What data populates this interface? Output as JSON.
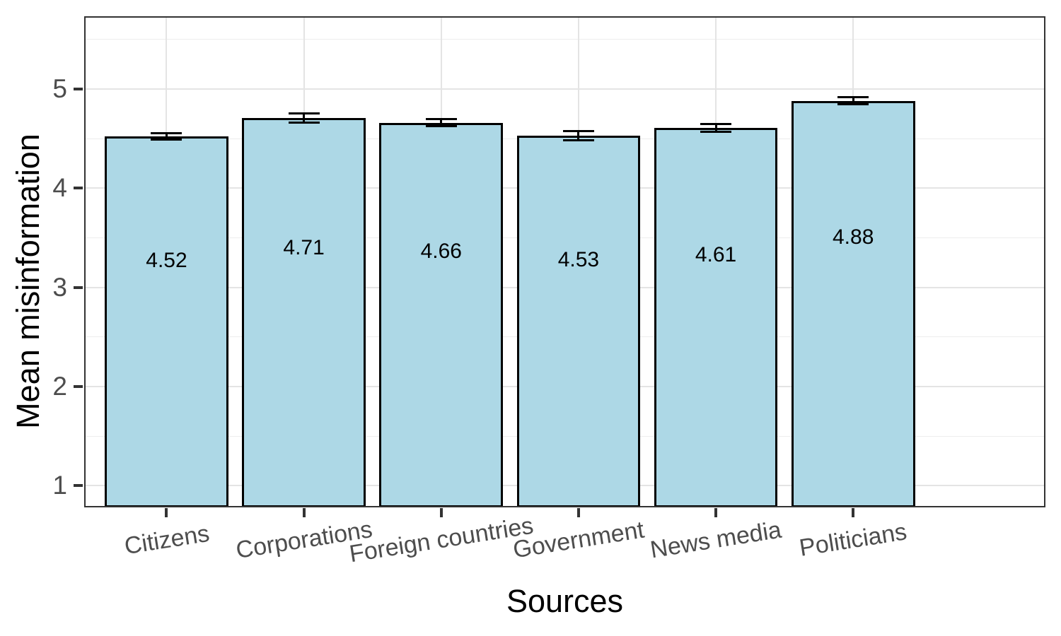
{
  "chart_data": {
    "type": "bar",
    "title": "",
    "xlabel": "Sources",
    "ylabel": "Mean misinformation",
    "categories": [
      "Citizens",
      "Corporations",
      "Foreign countries",
      "Government",
      "News media",
      "Politicians"
    ],
    "values": [
      4.52,
      4.71,
      4.66,
      4.53,
      4.61,
      4.88
    ],
    "value_labels": [
      "4.52",
      "4.71",
      "4.66",
      "4.53",
      "4.61",
      "4.88"
    ],
    "error_bars": [
      0.032,
      0.046,
      0.036,
      0.046,
      0.04,
      0.036
    ],
    "y_ticks": [
      1,
      2,
      3,
      4,
      5
    ],
    "y_minor_ticks": [
      1.5,
      2.5,
      3.5,
      4.5,
      5.5
    ],
    "ylim": [
      0.78,
      5.735
    ],
    "x_expand": 0.6,
    "bar_width_ratio": 0.9,
    "grid": true,
    "legend": "none",
    "colors": {
      "bar_fill": "#ADD8E6",
      "bar_stroke": "#000000",
      "grid_major": "#E4E4E4",
      "grid_minor": "#EDEDED",
      "panel_border": "#333333",
      "tick_mark": "#333333",
      "tick_label": "#4D4D4D",
      "axis_title": "#000000",
      "value_label": "#000000",
      "background": "#FFFFFF"
    }
  }
}
